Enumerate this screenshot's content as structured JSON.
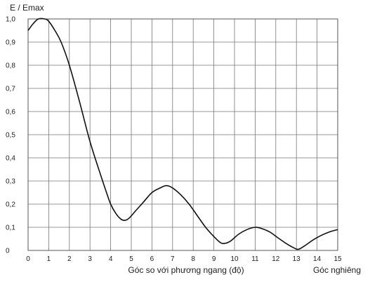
{
  "chart_data": {
    "type": "line",
    "title": "",
    "ylabel": "E / Emax",
    "xlabel": "Góc so với phương ngang (độ)",
    "xlabel_secondary": "Góc nghiêng",
    "xlim": [
      0,
      15
    ],
    "ylim": [
      0,
      1.0
    ],
    "grid": true,
    "x_ticks": [
      "0",
      "1",
      "2",
      "3",
      "4",
      "5",
      "6",
      "7",
      "8",
      "9",
      "10",
      "11",
      "12",
      "13",
      "14",
      "15"
    ],
    "y_ticks": [
      "0",
      "0,1",
      "0,2",
      "0,3",
      "0,4",
      "0,5",
      "0,6",
      "0,7",
      "0,8",
      "0,9",
      "1,0"
    ],
    "series": [
      {
        "name": "",
        "x": [
          0,
          0.25,
          0.5,
          0.8,
          1.0,
          1.3,
          1.6,
          2.0,
          2.5,
          3.0,
          3.5,
          3.8,
          4.0,
          4.25,
          4.5,
          4.7,
          4.9,
          5.2,
          5.6,
          6.0,
          6.4,
          6.7,
          7.0,
          7.4,
          7.8,
          8.2,
          8.6,
          9.0,
          9.3,
          9.5,
          9.8,
          10.2,
          10.6,
          11.0,
          11.3,
          11.7,
          12.1,
          12.5,
          12.9,
          13.1,
          13.4,
          13.8,
          14.2,
          14.6,
          15.0
        ],
        "y": [
          0.95,
          0.98,
          1.0,
          1.0,
          0.99,
          0.95,
          0.9,
          0.8,
          0.64,
          0.47,
          0.33,
          0.25,
          0.2,
          0.16,
          0.135,
          0.13,
          0.14,
          0.17,
          0.21,
          0.25,
          0.27,
          0.28,
          0.27,
          0.24,
          0.2,
          0.15,
          0.1,
          0.06,
          0.035,
          0.03,
          0.04,
          0.07,
          0.09,
          0.1,
          0.095,
          0.08,
          0.055,
          0.03,
          0.01,
          0.005,
          0.02,
          0.045,
          0.065,
          0.08,
          0.09
        ]
      }
    ]
  }
}
